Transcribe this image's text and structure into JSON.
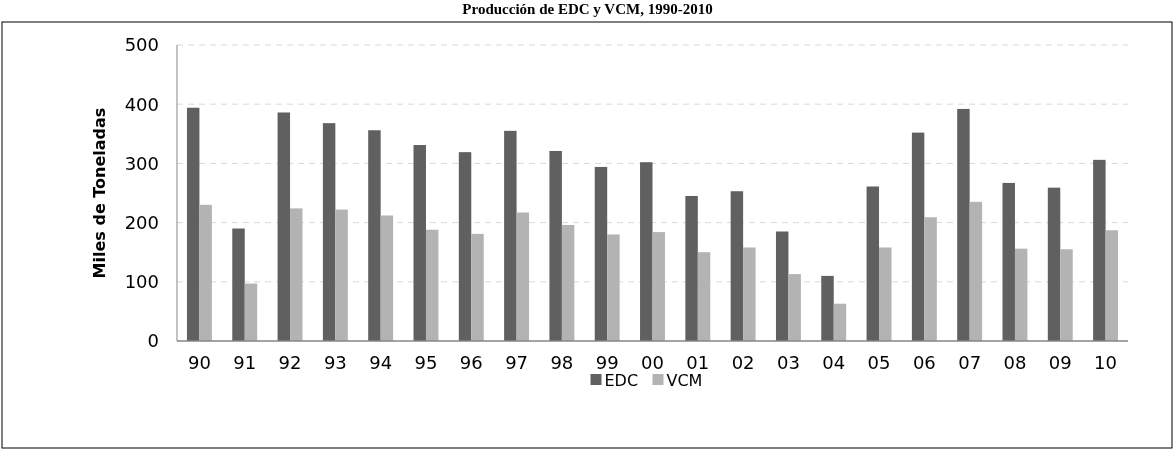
{
  "chart_data": {
    "type": "bar",
    "title": "Producción de EDC y VCM, 1990-2010",
    "ylabel": "Miles de Toneladas",
    "categories": [
      "90",
      "91",
      "92",
      "93",
      "94",
      "95",
      "96",
      "97",
      "98",
      "99",
      "00",
      "01",
      "02",
      "03",
      "04",
      "05",
      "06",
      "07",
      "08",
      "09",
      "10"
    ],
    "series": [
      {
        "name": "EDC",
        "color": "#606060",
        "values": [
          394,
          190,
          386,
          368,
          356,
          331,
          319,
          355,
          321,
          294,
          302,
          245,
          253,
          185,
          110,
          261,
          352,
          392,
          267,
          259,
          306
        ]
      },
      {
        "name": "VCM",
        "color": "#b3b3b3",
        "values": [
          230,
          97,
          224,
          222,
          212,
          188,
          181,
          217,
          196,
          180,
          184,
          150,
          158,
          113,
          63,
          158,
          209,
          235,
          156,
          155,
          187
        ]
      }
    ],
    "ylim": [
      0,
      500
    ],
    "yticks": [
      0,
      100,
      200,
      300,
      400,
      500
    ],
    "grid": "y",
    "legend": "bottom"
  }
}
